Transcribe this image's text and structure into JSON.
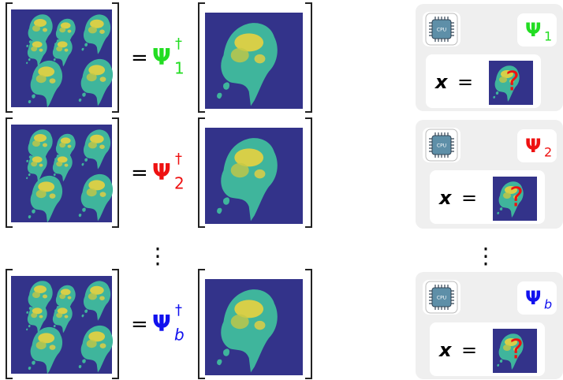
{
  "rows": [
    {
      "equals": "=",
      "psi": "Ψ",
      "dagger": "†",
      "index": "1",
      "color": "#22dd22"
    },
    {
      "equals": "=",
      "psi": "Ψ",
      "dagger": "†",
      "index": "2",
      "color": "#ee1111"
    },
    {
      "equals": "=",
      "psi": "Ψ",
      "dagger": "†",
      "index": "b",
      "color": "#1111ee"
    }
  ],
  "vdots": "⋮",
  "panels": [
    {
      "chip": "CPU",
      "psi": "Ψ",
      "index": "1",
      "color": "#22dd22",
      "x": "x",
      "equals": "=",
      "question": "?"
    },
    {
      "chip": "CPU",
      "psi": "Ψ",
      "index": "2",
      "color": "#ee1111",
      "x": "x",
      "equals": "=",
      "question": "?"
    },
    {
      "chip": "CPU",
      "psi": "Ψ",
      "index": "b",
      "color": "#1111ee",
      "x": "x",
      "equals": "=",
      "question": "?"
    }
  ]
}
